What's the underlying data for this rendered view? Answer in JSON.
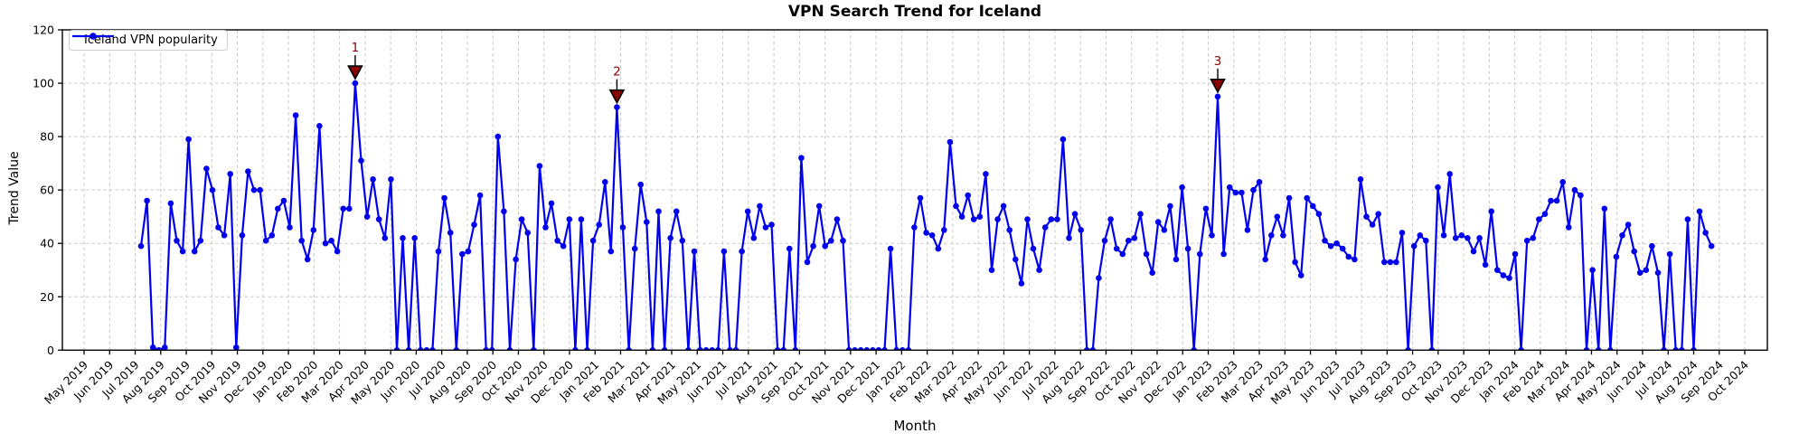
{
  "title": "VPN Search Trend for Iceland",
  "legend": {
    "label": "Iceland VPN popularity"
  },
  "axes": {
    "xlabel": "Month",
    "ylabel": "Trend Value",
    "yticks": [
      0,
      20,
      40,
      60,
      80,
      100,
      120
    ],
    "xtick_labels": [
      "May 2019",
      "Jun 2019",
      "Jul 2019",
      "Aug 2019",
      "Sep 2019",
      "Oct 2019",
      "Nov 2019",
      "Dec 2019",
      "Jan 2020",
      "Feb 2020",
      "Mar 2020",
      "Apr 2020",
      "May 2020",
      "Jun 2020",
      "Jul 2020",
      "Aug 2020",
      "Sep 2020",
      "Oct 2020",
      "Nov 2020",
      "Dec 2020",
      "Jan 2021",
      "Feb 2021",
      "Mar 2021",
      "Apr 2021",
      "May 2021",
      "Jun 2021",
      "Jul 2021",
      "Aug 2021",
      "Sep 2021",
      "Oct 2021",
      "Nov 2021",
      "Dec 2021",
      "Jan 2022",
      "Feb 2022",
      "Mar 2022",
      "Apr 2022",
      "May 2022",
      "Jun 2022",
      "Jul 2022",
      "Aug 2022",
      "Sep 2022",
      "Oct 2022",
      "Nov 2022",
      "Dec 2022",
      "Jan 2023",
      "Feb 2023",
      "Mar 2023",
      "Apr 2023",
      "May 2023",
      "Jun 2023",
      "Jul 2023",
      "Aug 2023",
      "Sep 2023",
      "Oct 2023",
      "Nov 2023",
      "Dec 2023",
      "Jan 2024",
      "Feb 2024",
      "Mar 2024",
      "Apr 2024",
      "May 2024",
      "Jun 2024",
      "Jul 2024",
      "Aug 2024",
      "Sep 2024",
      "Oct 2024"
    ]
  },
  "annotations": [
    {
      "label": "1",
      "point_index": 36
    },
    {
      "label": "2",
      "point_index": 80
    },
    {
      "label": "3",
      "point_index": 181
    }
  ],
  "colors": {
    "line": "#0000ee",
    "marker": "#0000ee",
    "annotation_fill": "#8b0000",
    "annotation_edge": "#000000",
    "annotation_text": "#8b0000",
    "grid": "#c9c9c9",
    "spine": "#000000",
    "background": "#ffffff"
  },
  "chart_data": {
    "type": "line",
    "title": "VPN Search Trend for Iceland",
    "xlabel": "Month",
    "ylabel": "Trend Value",
    "ylim": [
      0,
      120
    ],
    "grid": true,
    "legend_position": "upper left",
    "x_start": "2019-07-14",
    "x_interval": "weekly",
    "x_axis_range": [
      "May 2019",
      "Oct 2024"
    ],
    "series": [
      {
        "name": "Iceland VPN popularity",
        "values": [
          39,
          56,
          1,
          0,
          1,
          55,
          41,
          37,
          79,
          37,
          41,
          68,
          60,
          46,
          43,
          66,
          1,
          43,
          67,
          60,
          60,
          41,
          43,
          53,
          56,
          46,
          88,
          41,
          34,
          45,
          84,
          40,
          41,
          37,
          53,
          53,
          100,
          71,
          50,
          64,
          49,
          42,
          64,
          0,
          42,
          0,
          42,
          0,
          0,
          0,
          37,
          57,
          44,
          0,
          36,
          37,
          47,
          58,
          0,
          0,
          80,
          52,
          0,
          34,
          49,
          44,
          0,
          69,
          46,
          55,
          41,
          39,
          49,
          0,
          49,
          0,
          41,
          47,
          63,
          37,
          91,
          46,
          0,
          38,
          62,
          48,
          0,
          52,
          0,
          42,
          52,
          41,
          0,
          37,
          0,
          0,
          0,
          0,
          37,
          0,
          0,
          37,
          52,
          42,
          54,
          46,
          47,
          0,
          0,
          38,
          0,
          72,
          33,
          39,
          54,
          39,
          41,
          49,
          41,
          0,
          0,
          0,
          0,
          0,
          0,
          0,
          38,
          0,
          0,
          0,
          46,
          57,
          44,
          43,
          38,
          45,
          78,
          54,
          50,
          58,
          49,
          50,
          66,
          30,
          49,
          54,
          45,
          34,
          25,
          49,
          38,
          30,
          46,
          49,
          49,
          79,
          42,
          51,
          45,
          0,
          0,
          27,
          41,
          49,
          38,
          36,
          41,
          42,
          51,
          36,
          29,
          48,
          45,
          54,
          34,
          61,
          38,
          0,
          36,
          53,
          43,
          95,
          36,
          61,
          59,
          59,
          45,
          60,
          63,
          34,
          43,
          50,
          43,
          57,
          33,
          28,
          57,
          54,
          51,
          41,
          39,
          40,
          38,
          35,
          34,
          64,
          50,
          47,
          51,
          33,
          33,
          33,
          44,
          0,
          39,
          43,
          41,
          0,
          61,
          43,
          66,
          42,
          43,
          42,
          37,
          42,
          32,
          52,
          30,
          28,
          27,
          36,
          0,
          41,
          42,
          49,
          51,
          56,
          56,
          63,
          46,
          60,
          58,
          0,
          30,
          0,
          53,
          0,
          35,
          43,
          47,
          37,
          29,
          30,
          39,
          29,
          0,
          36,
          0,
          0,
          49,
          0,
          52,
          44,
          39
        ]
      }
    ]
  }
}
